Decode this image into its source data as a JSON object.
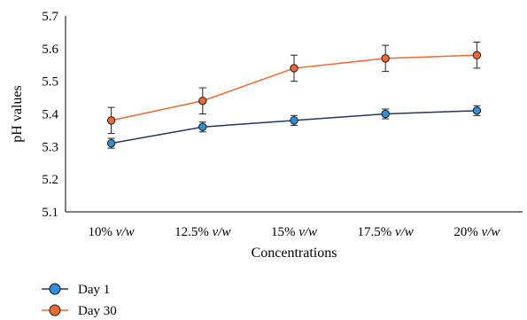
{
  "chart_data": {
    "type": "line",
    "categories": [
      "10%",
      "12.5%",
      "15%",
      "17.5%",
      "20%"
    ],
    "category_unit": "v/w",
    "xlabel": "Concentrations",
    "ylabel": "pH values",
    "ylim": [
      5.1,
      5.7
    ],
    "yticks": [
      "5.1",
      "5.2",
      "5.3",
      "5.4",
      "5.5",
      "5.6",
      "5.7"
    ],
    "grid": false,
    "legend_position": "bottom-left",
    "series": [
      {
        "name": "Day 1",
        "color": "#1f3864",
        "marker_color": "#2f8fd8",
        "values": [
          5.31,
          5.36,
          5.38,
          5.4,
          5.41
        ],
        "errors": [
          0.015,
          0.015,
          0.015,
          0.015,
          0.015
        ]
      },
      {
        "name": "Day 30",
        "color": "#ee6a35",
        "marker_color": "#ee6a35",
        "values": [
          5.38,
          5.44,
          5.54,
          5.57,
          5.58
        ],
        "errors": [
          0.04,
          0.04,
          0.04,
          0.04,
          0.04
        ]
      }
    ]
  }
}
